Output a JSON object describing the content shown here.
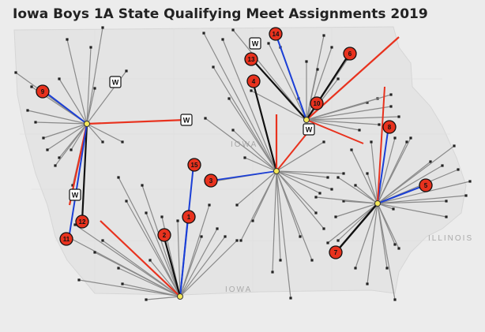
{
  "title": "Iowa Boys 1A State Qualifying Meet Assignments 2019",
  "map_labels": {
    "iowa_center": "IOWA",
    "iowa_south": "IOWA",
    "illinois": "ILLINOIS"
  },
  "colors": {
    "background": "#ececec",
    "state_fill": "#e6e6e6",
    "spoke": "#8a8a8a",
    "red": "#e8321e",
    "blue": "#1b3fd6",
    "black": "#111111",
    "badge": "#e8321e"
  },
  "numbered_markers": [
    "1",
    "2",
    "3",
    "4",
    "5",
    "6",
    "7",
    "8",
    "9",
    "10",
    "11",
    "12",
    "13",
    "14",
    "15"
  ],
  "w_markers": [
    "W",
    "W",
    "W",
    "W",
    "W"
  ]
}
